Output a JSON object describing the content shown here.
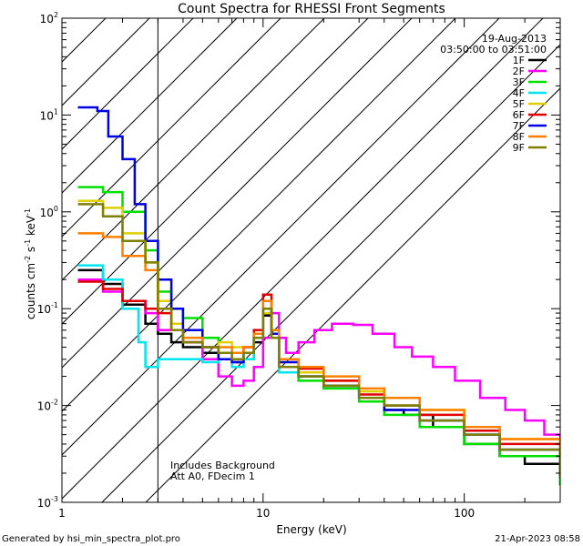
{
  "chart_data": {
    "type": "line",
    "title": "Count Spectra for RHESSI Front Segments",
    "xlabel": "Energy (keV)",
    "ylabel_parts": [
      "counts cm",
      "-2",
      " s",
      "-1",
      " keV",
      "-1"
    ],
    "xscale": "log",
    "yscale": "log",
    "xlim": [
      1,
      300
    ],
    "ylim": [
      0.001,
      100
    ],
    "x_tick_labels": [
      {
        "v": 1,
        "label": "1"
      },
      {
        "v": 10,
        "label": "10"
      },
      {
        "v": 100,
        "label": "100"
      }
    ],
    "y_tick_labels": [
      {
        "v": 0.001,
        "base": "10",
        "exp": "-3"
      },
      {
        "v": 0.01,
        "base": "10",
        "exp": "-2"
      },
      {
        "v": 0.1,
        "base": "10",
        "exp": "-1"
      },
      {
        "v": 1,
        "base": "10",
        "exp": "0"
      },
      {
        "v": 10,
        "base": "10",
        "exp": "1"
      },
      {
        "v": 100,
        "base": "10",
        "exp": "2"
      }
    ],
    "date": "19-Aug-2013",
    "time_range": "03:50:00 to 03:51:00",
    "hatch_xmax": 3,
    "annotations": [
      "Includes Background",
      "Att A0, FDecim 1"
    ],
    "footer_left": "Generated by hsi_min_spectra_plot.pro",
    "footer_right": "21-Apr-2023 08:58",
    "series": [
      {
        "name": "1F",
        "color": "#000000",
        "points": [
          [
            1.2,
            0.25
          ],
          [
            1.6,
            0.18
          ],
          [
            2.0,
            0.11
          ],
          [
            2.6,
            0.07
          ],
          [
            3.0,
            0.055
          ],
          [
            3.5,
            0.045
          ],
          [
            4.0,
            0.04
          ],
          [
            5.0,
            0.035
          ],
          [
            6.0,
            0.03
          ],
          [
            7.0,
            0.028
          ],
          [
            8.0,
            0.03
          ],
          [
            9.0,
            0.045
          ],
          [
            10.0,
            0.085
          ],
          [
            11.0,
            0.05
          ],
          [
            12.0,
            0.025
          ],
          [
            15.0,
            0.02
          ],
          [
            20.0,
            0.016
          ],
          [
            30.0,
            0.012
          ],
          [
            40.0,
            0.009
          ],
          [
            50.0,
            0.008
          ],
          [
            70.0,
            0.006
          ],
          [
            100.0,
            0.004
          ],
          [
            150.0,
            0.003
          ],
          [
            200.0,
            0.0025
          ],
          [
            300.0,
            0.0015
          ]
        ]
      },
      {
        "name": "2F",
        "color": "#ff00ff",
        "points": [
          [
            1.2,
            0.2
          ],
          [
            1.6,
            0.15
          ],
          [
            2.0,
            0.12
          ],
          [
            2.6,
            0.09
          ],
          [
            3.0,
            0.06
          ],
          [
            4.0,
            0.045
          ],
          [
            5.0,
            0.03
          ],
          [
            6.0,
            0.02
          ],
          [
            7.0,
            0.016
          ],
          [
            8.0,
            0.018
          ],
          [
            9.0,
            0.025
          ],
          [
            10.0,
            0.05
          ],
          [
            11.0,
            0.09
          ],
          [
            12.0,
            0.05
          ],
          [
            13.0,
            0.035
          ],
          [
            15.0,
            0.045
          ],
          [
            18.0,
            0.06
          ],
          [
            22.0,
            0.07
          ],
          [
            28.0,
            0.068
          ],
          [
            35.0,
            0.055
          ],
          [
            45.0,
            0.04
          ],
          [
            55.0,
            0.032
          ],
          [
            70.0,
            0.025
          ],
          [
            90.0,
            0.018
          ],
          [
            120.0,
            0.012
          ],
          [
            160.0,
            0.009
          ],
          [
            200.0,
            0.007
          ],
          [
            250.0,
            0.005
          ],
          [
            300.0,
            0.004
          ]
        ]
      },
      {
        "name": "3F",
        "color": "#00e000",
        "points": [
          [
            1.2,
            1.8
          ],
          [
            1.6,
            1.6
          ],
          [
            2.0,
            1.0
          ],
          [
            2.6,
            0.4
          ],
          [
            3.0,
            0.15
          ],
          [
            3.5,
            0.1
          ],
          [
            4.0,
            0.08
          ],
          [
            5.0,
            0.05
          ],
          [
            6.0,
            0.035
          ],
          [
            7.0,
            0.03
          ],
          [
            8.0,
            0.035
          ],
          [
            9.0,
            0.05
          ],
          [
            10.0,
            0.1
          ],
          [
            11.0,
            0.05
          ],
          [
            12.0,
            0.025
          ],
          [
            15.0,
            0.018
          ],
          [
            20.0,
            0.015
          ],
          [
            30.0,
            0.011
          ],
          [
            40.0,
            0.008
          ],
          [
            60.0,
            0.006
          ],
          [
            100.0,
            0.004
          ],
          [
            150.0,
            0.003
          ],
          [
            300.0,
            0.0015
          ]
        ]
      },
      {
        "name": "4F",
        "color": "#00e5ee",
        "points": [
          [
            1.2,
            0.28
          ],
          [
            1.6,
            0.2
          ],
          [
            2.0,
            0.1
          ],
          [
            2.4,
            0.045
          ],
          [
            2.6,
            0.025
          ],
          [
            3.0,
            0.03
          ],
          [
            4.0,
            0.03
          ],
          [
            5.0,
            0.028
          ],
          [
            6.0,
            0.03
          ],
          [
            7.0,
            0.025
          ],
          [
            8.0,
            0.03
          ],
          [
            9.0,
            0.05
          ],
          [
            10.0,
            0.09
          ],
          [
            11.0,
            0.05
          ],
          [
            12.0,
            0.022
          ],
          [
            15.0,
            0.02
          ],
          [
            20.0,
            0.016
          ],
          [
            30.0,
            0.012
          ],
          [
            40.0,
            0.01
          ],
          [
            60.0,
            0.007
          ],
          [
            100.0,
            0.005
          ],
          [
            150.0,
            0.0035
          ],
          [
            300.0,
            0.002
          ]
        ]
      },
      {
        "name": "5F",
        "color": "#e0d000",
        "points": [
          [
            1.2,
            1.3
          ],
          [
            1.6,
            1.1
          ],
          [
            2.0,
            0.6
          ],
          [
            2.6,
            0.3
          ],
          [
            3.0,
            0.12
          ],
          [
            3.5,
            0.07
          ],
          [
            4.0,
            0.05
          ],
          [
            5.0,
            0.04
          ],
          [
            6.0,
            0.045
          ],
          [
            7.0,
            0.04
          ],
          [
            8.0,
            0.04
          ],
          [
            9.0,
            0.055
          ],
          [
            10.0,
            0.09
          ],
          [
            11.0,
            0.05
          ],
          [
            12.0,
            0.028
          ],
          [
            15.0,
            0.022
          ],
          [
            20.0,
            0.018
          ],
          [
            30.0,
            0.014
          ],
          [
            40.0,
            0.012
          ],
          [
            60.0,
            0.009
          ],
          [
            100.0,
            0.006
          ],
          [
            150.0,
            0.0045
          ],
          [
            300.0,
            0.0025
          ]
        ]
      },
      {
        "name": "6F",
        "color": "#e00000",
        "points": [
          [
            1.2,
            0.19
          ],
          [
            1.6,
            0.16
          ],
          [
            2.0,
            0.12
          ],
          [
            2.6,
            0.1
          ],
          [
            3.0,
            0.09
          ],
          [
            3.5,
            0.06
          ],
          [
            4.0,
            0.045
          ],
          [
            5.0,
            0.04
          ],
          [
            6.0,
            0.035
          ],
          [
            7.0,
            0.035
          ],
          [
            8.0,
            0.04
          ],
          [
            9.0,
            0.06
          ],
          [
            10.0,
            0.14
          ],
          [
            11.0,
            0.06
          ],
          [
            12.0,
            0.03
          ],
          [
            15.0,
            0.024
          ],
          [
            20.0,
            0.018
          ],
          [
            30.0,
            0.013
          ],
          [
            40.0,
            0.01
          ],
          [
            60.0,
            0.008
          ],
          [
            100.0,
            0.0055
          ],
          [
            150.0,
            0.004
          ],
          [
            300.0,
            0.002
          ]
        ]
      },
      {
        "name": "7F",
        "color": "#0000e0",
        "points": [
          [
            1.2,
            12.0
          ],
          [
            1.5,
            11.0
          ],
          [
            1.7,
            6.0
          ],
          [
            2.0,
            3.5
          ],
          [
            2.3,
            1.2
          ],
          [
            2.6,
            0.5
          ],
          [
            3.0,
            0.2
          ],
          [
            3.5,
            0.1
          ],
          [
            4.0,
            0.06
          ],
          [
            5.0,
            0.04
          ],
          [
            6.0,
            0.03
          ],
          [
            7.0,
            0.028
          ],
          [
            8.0,
            0.035
          ],
          [
            9.0,
            0.05
          ],
          [
            10.0,
            0.1
          ],
          [
            11.0,
            0.055
          ],
          [
            12.0,
            0.028
          ],
          [
            15.0,
            0.02
          ],
          [
            20.0,
            0.016
          ],
          [
            30.0,
            0.012
          ],
          [
            40.0,
            0.009
          ],
          [
            60.0,
            0.007
          ],
          [
            100.0,
            0.005
          ],
          [
            150.0,
            0.0035
          ],
          [
            300.0,
            0.0018
          ]
        ]
      },
      {
        "name": "8F",
        "color": "#ff8000",
        "points": [
          [
            1.2,
            0.6
          ],
          [
            1.6,
            0.55
          ],
          [
            2.0,
            0.35
          ],
          [
            2.6,
            0.25
          ],
          [
            3.0,
            0.1
          ],
          [
            3.5,
            0.06
          ],
          [
            4.0,
            0.05
          ],
          [
            5.0,
            0.04
          ],
          [
            6.0,
            0.04
          ],
          [
            7.0,
            0.035
          ],
          [
            8.0,
            0.04
          ],
          [
            9.0,
            0.055
          ],
          [
            10.0,
            0.12
          ],
          [
            11.0,
            0.06
          ],
          [
            12.0,
            0.03
          ],
          [
            15.0,
            0.025
          ],
          [
            20.0,
            0.02
          ],
          [
            30.0,
            0.015
          ],
          [
            40.0,
            0.012
          ],
          [
            60.0,
            0.009
          ],
          [
            100.0,
            0.006
          ],
          [
            150.0,
            0.0045
          ],
          [
            300.0,
            0.0025
          ]
        ]
      },
      {
        "name": "9F",
        "color": "#7f7f00",
        "points": [
          [
            1.2,
            1.2
          ],
          [
            1.6,
            0.9
          ],
          [
            2.0,
            0.5
          ],
          [
            2.6,
            0.3
          ],
          [
            3.0,
            0.1
          ],
          [
            3.5,
            0.06
          ],
          [
            4.0,
            0.045
          ],
          [
            5.0,
            0.04
          ],
          [
            6.0,
            0.035
          ],
          [
            7.0,
            0.03
          ],
          [
            8.0,
            0.035
          ],
          [
            9.0,
            0.05
          ],
          [
            10.0,
            0.1
          ],
          [
            11.0,
            0.05
          ],
          [
            12.0,
            0.025
          ],
          [
            15.0,
            0.02
          ],
          [
            20.0,
            0.016
          ],
          [
            30.0,
            0.012
          ],
          [
            40.0,
            0.01
          ],
          [
            60.0,
            0.007
          ],
          [
            100.0,
            0.005
          ],
          [
            150.0,
            0.0035
          ],
          [
            300.0,
            0.0018
          ]
        ]
      }
    ]
  }
}
